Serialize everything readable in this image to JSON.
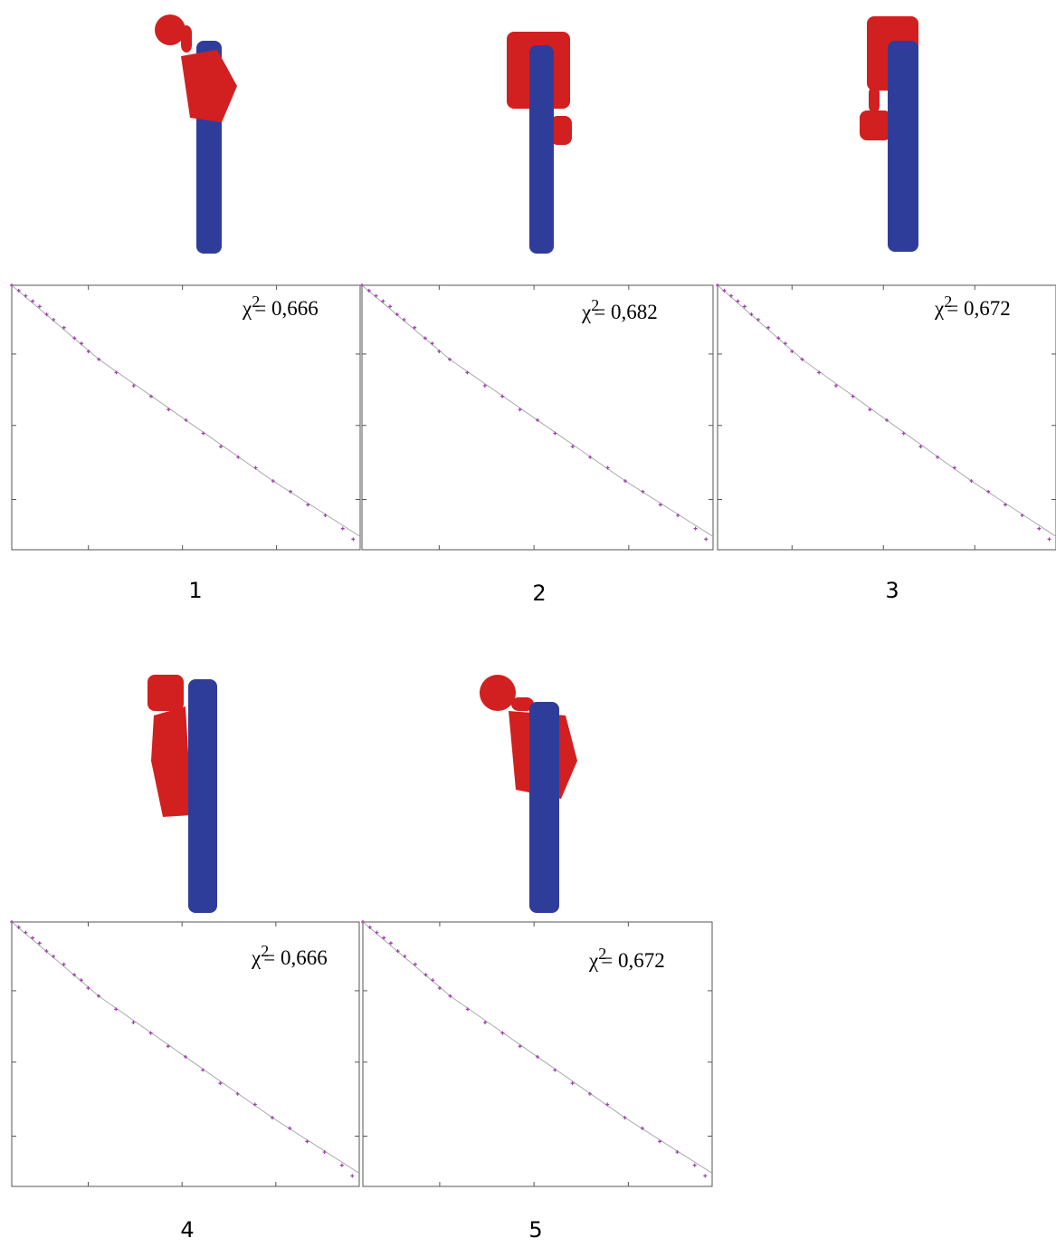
{
  "chart_data": [
    {
      "type": "scatter",
      "label": "1",
      "stat_symbol": "χ",
      "stat_power": "2",
      "stat_value": "= 0,666",
      "x": [
        0,
        0.02,
        0.04,
        0.06,
        0.08,
        0.1,
        0.12,
        0.15,
        0.18,
        0.2,
        0.22,
        0.25,
        0.3,
        0.35,
        0.4,
        0.45,
        0.5,
        0.55,
        0.6,
        0.65,
        0.7,
        0.75,
        0.8,
        0.85,
        0.9,
        0.95,
        0.98
      ],
      "values": [
        1.0,
        0.98,
        0.96,
        0.94,
        0.92,
        0.89,
        0.87,
        0.84,
        0.8,
        0.78,
        0.75,
        0.72,
        0.67,
        0.62,
        0.58,
        0.53,
        0.49,
        0.44,
        0.39,
        0.35,
        0.31,
        0.26,
        0.22,
        0.17,
        0.13,
        0.08,
        0.04
      ],
      "color": "#9b3fa8",
      "fit": {
        "x": [
          0,
          0.25,
          0.5,
          0.75,
          1
        ],
        "values": [
          1.0,
          0.72,
          0.49,
          0.26,
          0.05
        ],
        "color": "#b0a8b4"
      },
      "xlim": [
        0,
        1
      ],
      "ylim": [
        0,
        1
      ],
      "xticks": [
        0.22,
        0.49,
        0.76
      ],
      "yticks": [
        0.19,
        0.47,
        0.74
      ]
    },
    {
      "type": "scatter",
      "label": "2",
      "stat_symbol": "χ",
      "stat_power": "2",
      "stat_value": "= 0,682",
      "x": [
        0,
        0.02,
        0.04,
        0.06,
        0.08,
        0.1,
        0.12,
        0.15,
        0.18,
        0.2,
        0.22,
        0.25,
        0.3,
        0.35,
        0.4,
        0.45,
        0.5,
        0.55,
        0.6,
        0.65,
        0.7,
        0.75,
        0.8,
        0.85,
        0.9,
        0.95,
        0.98
      ],
      "values": [
        1.0,
        0.98,
        0.96,
        0.94,
        0.92,
        0.89,
        0.87,
        0.84,
        0.8,
        0.78,
        0.75,
        0.72,
        0.67,
        0.62,
        0.58,
        0.53,
        0.49,
        0.44,
        0.39,
        0.35,
        0.31,
        0.26,
        0.22,
        0.17,
        0.13,
        0.08,
        0.04
      ],
      "color": "#9b3fa8",
      "fit": {
        "x": [
          0,
          0.25,
          0.5,
          0.75,
          1
        ],
        "values": [
          1.0,
          0.72,
          0.49,
          0.26,
          0.05
        ],
        "color": "#b0a8b4"
      },
      "xlim": [
        0,
        1
      ],
      "ylim": [
        0,
        1
      ],
      "xticks": [
        0.22,
        0.49,
        0.76
      ],
      "yticks": [
        0.19,
        0.47,
        0.74
      ]
    },
    {
      "type": "scatter",
      "label": "3",
      "stat_symbol": "χ",
      "stat_power": "2",
      "stat_value": "= 0,672",
      "x": [
        0,
        0.02,
        0.04,
        0.06,
        0.08,
        0.1,
        0.12,
        0.15,
        0.18,
        0.2,
        0.22,
        0.25,
        0.3,
        0.35,
        0.4,
        0.45,
        0.5,
        0.55,
        0.6,
        0.65,
        0.7,
        0.75,
        0.8,
        0.85,
        0.9,
        0.95,
        0.98
      ],
      "values": [
        1.0,
        0.98,
        0.96,
        0.94,
        0.92,
        0.89,
        0.87,
        0.84,
        0.8,
        0.78,
        0.75,
        0.72,
        0.67,
        0.62,
        0.58,
        0.53,
        0.49,
        0.44,
        0.39,
        0.35,
        0.31,
        0.26,
        0.22,
        0.17,
        0.13,
        0.08,
        0.04
      ],
      "color": "#9b3fa8",
      "fit": {
        "x": [
          0,
          0.25,
          0.5,
          0.75,
          1
        ],
        "values": [
          1.0,
          0.72,
          0.49,
          0.26,
          0.05
        ],
        "color": "#b0a8b4"
      },
      "xlim": [
        0,
        1
      ],
      "ylim": [
        0,
        1
      ],
      "xticks": [
        0.22,
        0.49,
        0.76
      ],
      "yticks": [
        0.19,
        0.47,
        0.74
      ]
    },
    {
      "type": "scatter",
      "label": "4",
      "stat_symbol": "χ",
      "stat_power": "2",
      "stat_value": "= 0,666",
      "x": [
        0,
        0.02,
        0.04,
        0.06,
        0.08,
        0.1,
        0.12,
        0.15,
        0.18,
        0.2,
        0.22,
        0.25,
        0.3,
        0.35,
        0.4,
        0.45,
        0.5,
        0.55,
        0.6,
        0.65,
        0.7,
        0.75,
        0.8,
        0.85,
        0.9,
        0.95,
        0.98
      ],
      "values": [
        1.0,
        0.98,
        0.96,
        0.94,
        0.92,
        0.89,
        0.87,
        0.84,
        0.8,
        0.78,
        0.75,
        0.72,
        0.67,
        0.62,
        0.58,
        0.53,
        0.49,
        0.44,
        0.39,
        0.35,
        0.31,
        0.26,
        0.22,
        0.17,
        0.13,
        0.08,
        0.04
      ],
      "color": "#9b3fa8",
      "fit": {
        "x": [
          0,
          0.25,
          0.5,
          0.75,
          1
        ],
        "values": [
          1.0,
          0.72,
          0.49,
          0.26,
          0.05
        ],
        "color": "#b0a8b4"
      },
      "xlim": [
        0,
        1
      ],
      "ylim": [
        0,
        1
      ],
      "xticks": [
        0.22,
        0.49,
        0.76
      ],
      "yticks": [
        0.19,
        0.47,
        0.74
      ]
    },
    {
      "type": "scatter",
      "label": "5",
      "stat_symbol": "χ",
      "stat_power": "2",
      "stat_value": "= 0,672",
      "x": [
        0,
        0.02,
        0.04,
        0.06,
        0.08,
        0.1,
        0.12,
        0.15,
        0.18,
        0.2,
        0.22,
        0.25,
        0.3,
        0.35,
        0.4,
        0.45,
        0.5,
        0.55,
        0.6,
        0.65,
        0.7,
        0.75,
        0.8,
        0.85,
        0.9,
        0.95,
        0.98
      ],
      "values": [
        1.0,
        0.98,
        0.96,
        0.94,
        0.92,
        0.89,
        0.87,
        0.84,
        0.8,
        0.78,
        0.75,
        0.72,
        0.67,
        0.62,
        0.58,
        0.53,
        0.49,
        0.44,
        0.39,
        0.35,
        0.31,
        0.26,
        0.22,
        0.17,
        0.13,
        0.08,
        0.04
      ],
      "color": "#9b3fa8",
      "fit": {
        "x": [
          0,
          0.25,
          0.5,
          0.75,
          1
        ],
        "values": [
          1.0,
          0.72,
          0.49,
          0.26,
          0.05
        ],
        "color": "#b0a8b4"
      },
      "xlim": [
        0,
        1
      ],
      "ylim": [
        0,
        1
      ],
      "xticks": [
        0.22,
        0.49,
        0.76
      ],
      "yticks": [
        0.19,
        0.47,
        0.74
      ]
    }
  ]
}
